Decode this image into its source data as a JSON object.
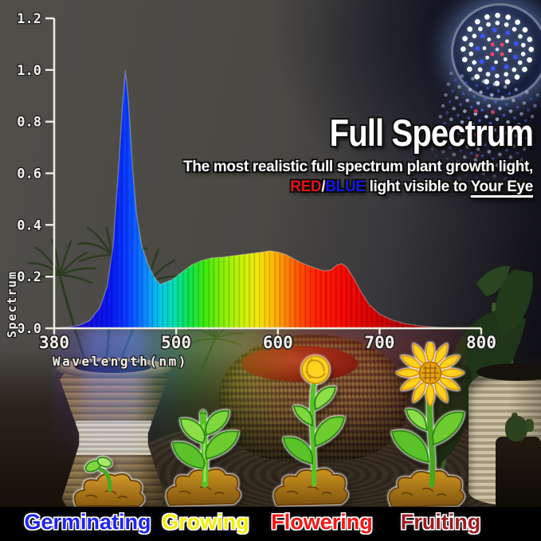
{
  "headline": {
    "title": "Full Spectrum",
    "subtitle_line1": "The most realistic full spectrum plant growth light,",
    "red_word": "RED",
    "slash": "/",
    "blue_word": "BLUE",
    "subtitle_line2_rest": " light visible to ",
    "underlined_phrase": "Your Eye",
    "red_color": "#e81212",
    "blue_color": "#1617e6"
  },
  "chart_data": {
    "type": "area",
    "title": "",
    "xlabel": "Wavelength(nm)",
    "ylabel": "Spectrum",
    "xlim": [
      380,
      800
    ],
    "ylim": [
      0,
      1.2
    ],
    "x_ticks": [
      380,
      500,
      600,
      700,
      800
    ],
    "y_ticks": [
      0,
      0.2,
      0.4,
      0.6,
      0.8,
      1.0,
      1.2
    ],
    "y_tick_labels": [
      "0.0",
      "0.2",
      "0.4",
      "0.6",
      "0.8",
      "1.0",
      "1.2"
    ],
    "grid": false,
    "x": [
      380,
      395,
      405,
      415,
      425,
      432,
      438,
      443,
      447,
      450,
      453,
      457,
      461,
      466,
      472,
      478,
      484,
      490,
      497,
      505,
      515,
      525,
      535,
      545,
      555,
      565,
      575,
      585,
      592,
      600,
      608,
      615,
      625,
      635,
      645,
      652,
      658,
      663,
      668,
      675,
      682,
      690,
      700,
      712,
      725,
      740,
      755,
      770,
      785
    ],
    "y": [
      0.0,
      0.005,
      0.012,
      0.03,
      0.08,
      0.16,
      0.32,
      0.6,
      0.85,
      1.0,
      0.88,
      0.62,
      0.44,
      0.32,
      0.25,
      0.2,
      0.17,
      0.178,
      0.19,
      0.215,
      0.245,
      0.262,
      0.272,
      0.275,
      0.28,
      0.285,
      0.29,
      0.295,
      0.3,
      0.295,
      0.285,
      0.27,
      0.25,
      0.235,
      0.222,
      0.225,
      0.245,
      0.25,
      0.235,
      0.19,
      0.14,
      0.09,
      0.055,
      0.032,
      0.018,
      0.009,
      0.004,
      0.001,
      0.0
    ],
    "fill_gradient_stops": [
      [
        380,
        "#2500b8"
      ],
      [
        435,
        "#0613f0"
      ],
      [
        452,
        "#063cff"
      ],
      [
        468,
        "#0b7dff"
      ],
      [
        483,
        "#00c3e8"
      ],
      [
        498,
        "#00dfae"
      ],
      [
        512,
        "#0ae24d"
      ],
      [
        528,
        "#3ce80a"
      ],
      [
        548,
        "#8ef000"
      ],
      [
        566,
        "#c9f200"
      ],
      [
        580,
        "#f2e600"
      ],
      [
        592,
        "#ffc400"
      ],
      [
        604,
        "#ff9300"
      ],
      [
        618,
        "#ff5a00"
      ],
      [
        638,
        "#ff1e00"
      ],
      [
        665,
        "#f30800"
      ],
      [
        695,
        "#d40000"
      ],
      [
        730,
        "#a30000"
      ],
      [
        765,
        "#7a0000"
      ],
      [
        800,
        "#5e0000"
      ]
    ]
  },
  "stages": [
    {
      "label": "Germinating",
      "color": "#2123f2"
    },
    {
      "label": "Growing",
      "color": "#f2ee04"
    },
    {
      "label": "Flowering",
      "color": "#f51616"
    },
    {
      "label": "Fruiting",
      "color": "#9c1c22"
    }
  ],
  "illustrations": {
    "led_bulb": "led-grow-light-bulb",
    "germinating": "sprout-in-soil",
    "growing": "seedling-in-soil",
    "flowering": "plant-with-yellow-flower-bud",
    "fruiting": "sunflower-in-full-bloom"
  }
}
